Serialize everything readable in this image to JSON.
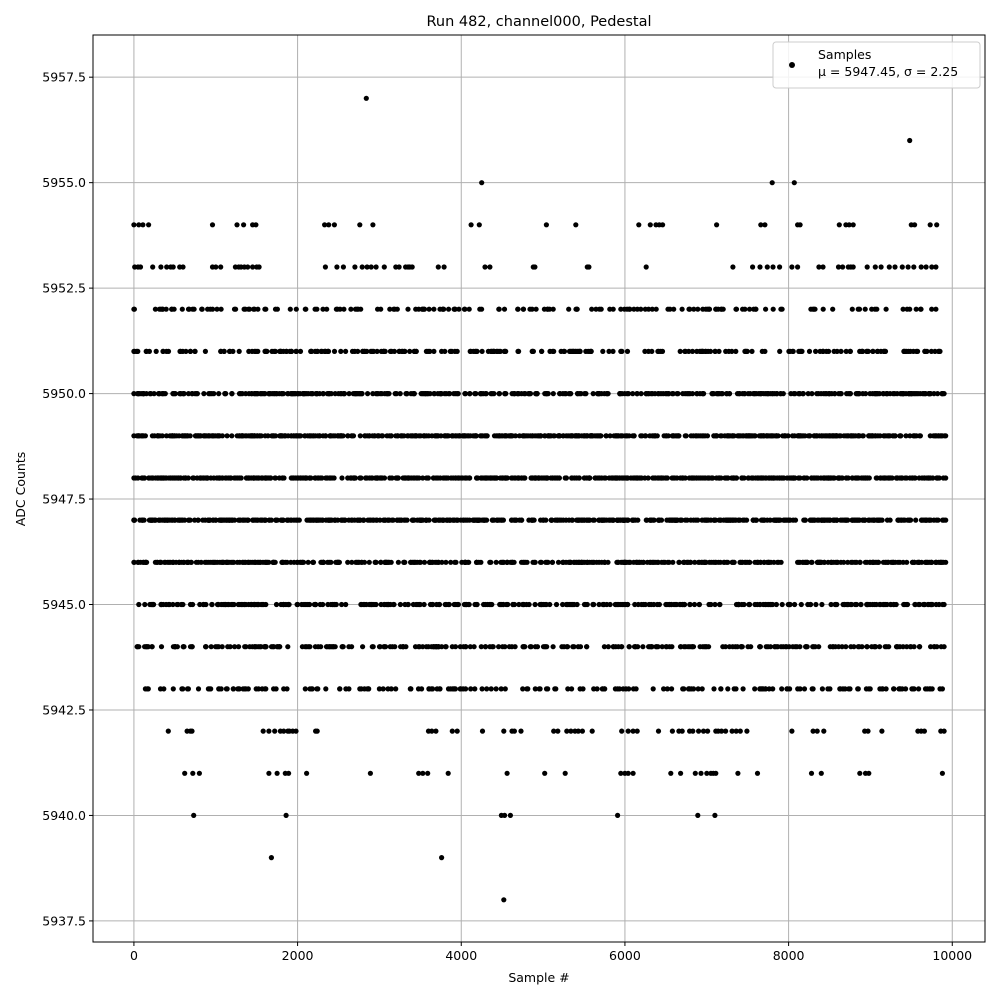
{
  "chart_data": {
    "type": "scatter",
    "title": "Run 482, channel000, Pedestal",
    "xlabel": "Sample #",
    "ylabel": "ADC Counts",
    "xlim": [
      -500,
      10400
    ],
    "ylim": [
      5937.0,
      5958.5
    ],
    "x_ticks": [
      0,
      2000,
      4000,
      6000,
      8000,
      10000
    ],
    "x_tick_labels": [
      "0",
      "2000",
      "4000",
      "6000",
      "8000",
      "10000"
    ],
    "y_ticks": [
      5937.5,
      5940.0,
      5942.5,
      5945.0,
      5947.5,
      5950.0,
      5952.5,
      5955.0,
      5957.5
    ],
    "y_tick_labels": [
      "5937.5",
      "5940.0",
      "5942.5",
      "5945.0",
      "5947.5",
      "5950.0",
      "5952.5",
      "5955.0",
      "5957.5"
    ],
    "grid": true,
    "legend_position": "top-right",
    "marker_color": "#000000",
    "series": [
      {
        "name": "Samples",
        "stat_label": "μ = 5947.45, σ = 2.25",
        "levels": [
          {
            "y": 5957,
            "x": [
              2840
            ]
          },
          {
            "y": 5956,
            "x": [
              9480
            ]
          },
          {
            "y": 5955,
            "x": [
              4250,
              7800,
              8070
            ]
          },
          {
            "y": 5954,
            "x": [
              0,
              60,
              110,
              180,
              960,
              1260,
              1340,
              1450,
              1490,
              2330,
              2380,
              2450,
              2760,
              2920,
              4120,
              4220,
              5040,
              5400,
              6170,
              6310,
              6380,
              6420,
              6460,
              7120,
              7660,
              7710,
              8110,
              8140,
              8620,
              8700,
              8740,
              8790,
              9500,
              9540,
              9730,
              9810
            ]
          },
          {
            "y": 5953,
            "x": [
              10,
              50,
              80,
              230,
              330,
              400,
              450,
              480,
              560,
              600,
              960,
              1000,
              1060,
              1240,
              1280,
              1310,
              1350,
              1390,
              1450,
              1500,
              1530,
              2340,
              2480,
              2560,
              2700,
              2790,
              2850,
              2900,
              2960,
              3060,
              3200,
              3240,
              3320,
              3350,
              3370,
              3400,
              3720,
              3790,
              4290,
              4350,
              4880,
              4900,
              5540,
              5560,
              6260,
              7320,
              7560,
              7650,
              7740,
              7810,
              7890,
              8040,
              8110,
              8370,
              8420,
              8610,
              8660,
              8730,
              8760,
              8790,
              8960,
              9060,
              9130,
              9230,
              9300,
              9390,
              9460,
              9530,
              9620,
              9680,
              9750,
              9800
            ]
          }
        ],
        "bands": [
          {
            "y": 5952,
            "from": 0,
            "to": 9800,
            "count": 170,
            "seed": 11
          },
          {
            "y": 5951,
            "from": 0,
            "to": 9850,
            "count": 260,
            "seed": 12
          },
          {
            "y": 5950,
            "from": 0,
            "to": 9900,
            "count": 420,
            "seed": 13
          },
          {
            "y": 5949,
            "from": 0,
            "to": 9920,
            "count": 560,
            "seed": 14
          },
          {
            "y": 5948,
            "from": 0,
            "to": 9920,
            "count": 580,
            "seed": 15
          },
          {
            "y": 5947,
            "from": 0,
            "to": 9920,
            "count": 560,
            "seed": 16
          },
          {
            "y": 5946,
            "from": 0,
            "to": 9920,
            "count": 450,
            "seed": 17
          },
          {
            "y": 5945,
            "from": 60,
            "to": 9900,
            "count": 340,
            "seed": 18
          },
          {
            "y": 5944,
            "from": 40,
            "to": 9900,
            "count": 280,
            "seed": 19
          },
          {
            "y": 5943,
            "from": 140,
            "to": 9880,
            "count": 190,
            "seed": 20
          }
        ],
        "sparse": [
          {
            "y": 5942,
            "x": [
              420,
              650,
              690,
              710,
              1580,
              1650,
              1720,
              1790,
              1830,
              1880,
              1900,
              1940,
              1980,
              2220,
              2240,
              3600,
              3640,
              3690,
              3890,
              3950,
              4260,
              4520,
              4620,
              4650,
              4730,
              5130,
              5180,
              5290,
              5340,
              5390,
              5430,
              5480,
              5600,
              5960,
              6040,
              6100,
              6150,
              6410,
              6580,
              6660,
              6700,
              6790,
              6830,
              6900,
              6960,
              7010,
              7110,
              7140,
              7180,
              7230,
              7310,
              7360,
              7410,
              7490,
              8040,
              8300,
              8350,
              8430,
              8930,
              8970,
              9140,
              9580,
              9620,
              9660,
              9860,
              9900
            ]
          },
          {
            "y": 5941,
            "x": [
              620,
              720,
              800,
              1650,
              1750,
              1850,
              1890,
              2110,
              2890,
              3480,
              3530,
              3590,
              3840,
              4560,
              5020,
              5270,
              5950,
              6000,
              6040,
              6100,
              6560,
              6680,
              6860,
              6930,
              7000,
              7050,
              7080,
              7110,
              7380,
              7620,
              8280,
              8400,
              8870,
              8940,
              8980,
              9880
            ]
          },
          {
            "y": 5940,
            "x": [
              730,
              1860,
              4490,
              4530,
              4600,
              5910,
              6890,
              7100
            ]
          },
          {
            "y": 5939,
            "x": [
              1680,
              3760
            ]
          },
          {
            "y": 5938,
            "x": [
              4520
            ]
          }
        ]
      }
    ]
  }
}
